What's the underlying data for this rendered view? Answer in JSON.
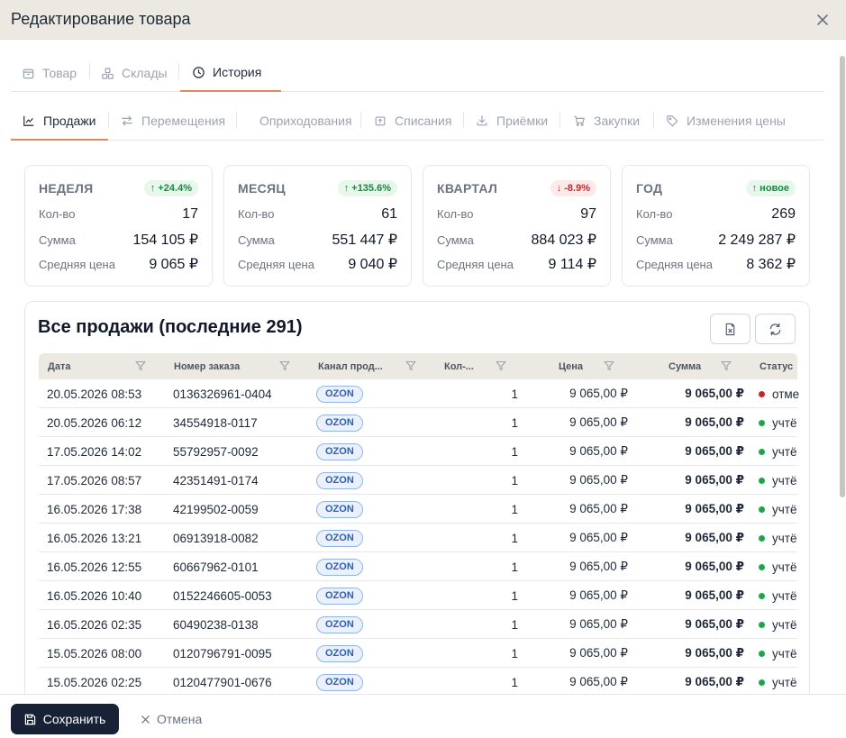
{
  "dialog": {
    "title": "Редактирование товара"
  },
  "main_tabs": [
    {
      "label": "Товар",
      "icon": "box-icon"
    },
    {
      "label": "Склады",
      "icon": "warehouses-icon"
    },
    {
      "label": "История",
      "icon": "clock-icon",
      "active": true
    }
  ],
  "history_tabs": [
    {
      "label": "Продажи",
      "icon": "chart-icon",
      "active": true
    },
    {
      "label": "Перемещения",
      "icon": "transfer-icon"
    },
    {
      "label": "Оприходования",
      "icon": ""
    },
    {
      "label": "Списания",
      "icon": "writeoff-icon"
    },
    {
      "label": "Приёмки",
      "icon": "download-icon"
    },
    {
      "label": "Закупки",
      "icon": "cart-icon"
    },
    {
      "label": "Изменения цены",
      "icon": "tag-icon"
    }
  ],
  "stats": [
    {
      "period": "НЕДЕЛЯ",
      "badge": "+24.4%",
      "trend": "up",
      "qty_label": "Кол-во",
      "qty": "17",
      "sum_label": "Сумма",
      "sum": "154 105 ₽",
      "avg_label": "Средняя цена",
      "avg": "9 065 ₽"
    },
    {
      "period": "МЕСЯЦ",
      "badge": "+135.6%",
      "trend": "up",
      "qty_label": "Кол-во",
      "qty": "61",
      "sum_label": "Сумма",
      "sum": "551 447 ₽",
      "avg_label": "Средняя цена",
      "avg": "9 040 ₽"
    },
    {
      "period": "КВАРТАЛ",
      "badge": "-8.9%",
      "trend": "down",
      "qty_label": "Кол-во",
      "qty": "97",
      "sum_label": "Сумма",
      "sum": "884 023 ₽",
      "avg_label": "Средняя цена",
      "avg": "9 114 ₽"
    },
    {
      "period": "ГОД",
      "badge": "новое",
      "trend": "up",
      "qty_label": "Кол-во",
      "qty": "269",
      "sum_label": "Сумма",
      "sum": "2 249 287 ₽",
      "avg_label": "Средняя цена",
      "avg": "8 362 ₽"
    }
  ],
  "sales": {
    "title": "Все продажи (последние 291)",
    "columns": [
      "Дата",
      "Номер заказа",
      "Канал прод...",
      "Кол-...",
      "Цена",
      "Сумма",
      "Статус"
    ],
    "rows": [
      {
        "date": "20.05.2026 08:53",
        "order": "0136326961-0404",
        "channel": "OZON",
        "qty": "1",
        "price": "9 065,00 ₽",
        "sum": "9 065,00 ₽",
        "status": "отме",
        "status_color": "#c62828"
      },
      {
        "date": "20.05.2026 06:12",
        "order": "34554918-0117",
        "channel": "OZON",
        "qty": "1",
        "price": "9 065,00 ₽",
        "sum": "9 065,00 ₽",
        "status": "учтё",
        "status_color": "#22a34a"
      },
      {
        "date": "17.05.2026 14:02",
        "order": "55792957-0092",
        "channel": "OZON",
        "qty": "1",
        "price": "9 065,00 ₽",
        "sum": "9 065,00 ₽",
        "status": "учтё",
        "status_color": "#22a34a"
      },
      {
        "date": "17.05.2026 08:57",
        "order": "42351491-0174",
        "channel": "OZON",
        "qty": "1",
        "price": "9 065,00 ₽",
        "sum": "9 065,00 ₽",
        "status": "учтё",
        "status_color": "#22a34a"
      },
      {
        "date": "16.05.2026 17:38",
        "order": "42199502-0059",
        "channel": "OZON",
        "qty": "1",
        "price": "9 065,00 ₽",
        "sum": "9 065,00 ₽",
        "status": "учтё",
        "status_color": "#22a34a"
      },
      {
        "date": "16.05.2026 13:21",
        "order": "06913918-0082",
        "channel": "OZON",
        "qty": "1",
        "price": "9 065,00 ₽",
        "sum": "9 065,00 ₽",
        "status": "учтё",
        "status_color": "#22a34a"
      },
      {
        "date": "16.05.2026 12:55",
        "order": "60667962-0101",
        "channel": "OZON",
        "qty": "1",
        "price": "9 065,00 ₽",
        "sum": "9 065,00 ₽",
        "status": "учтё",
        "status_color": "#22a34a"
      },
      {
        "date": "16.05.2026 10:40",
        "order": "0152246605-0053",
        "channel": "OZON",
        "qty": "1",
        "price": "9 065,00 ₽",
        "sum": "9 065,00 ₽",
        "status": "учтё",
        "status_color": "#22a34a"
      },
      {
        "date": "16.05.2026 02:35",
        "order": "60490238-0138",
        "channel": "OZON",
        "qty": "1",
        "price": "9 065,00 ₽",
        "sum": "9 065,00 ₽",
        "status": "учтё",
        "status_color": "#22a34a"
      },
      {
        "date": "15.05.2026 08:00",
        "order": "0120796791-0095",
        "channel": "OZON",
        "qty": "1",
        "price": "9 065,00 ₽",
        "sum": "9 065,00 ₽",
        "status": "учтё",
        "status_color": "#22a34a"
      },
      {
        "date": "15.05.2026 02:25",
        "order": "0120477901-0676",
        "channel": "OZON",
        "qty": "1",
        "price": "9 065,00 ₽",
        "sum": "9 065,00 ₽",
        "status": "учтё",
        "status_color": "#22a34a"
      }
    ]
  },
  "footer": {
    "save_label": "Сохранить",
    "cancel_label": "Отмена"
  },
  "colors": {
    "accent": "#e08a5b",
    "primary_button": "#172237",
    "header_bg": "#ece9e3"
  }
}
